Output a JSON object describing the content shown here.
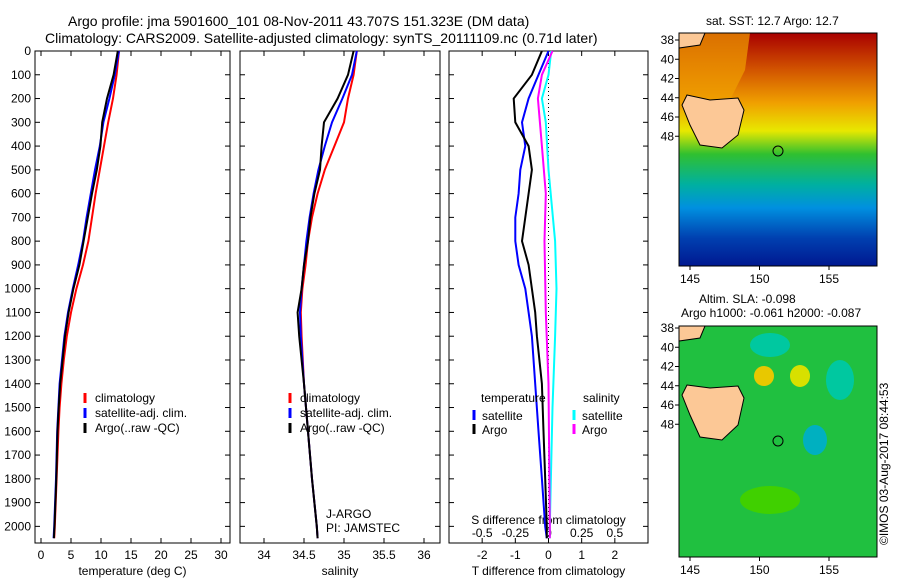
{
  "title": {
    "line1": "Argo profile: jma 5901600_101 08-Nov-2011 43.707S 151.323E (DM data)",
    "line2": "Climatology: CARS2009. Satellite-adjusted climatology: synTS_20111109.nc (0.71d later)"
  },
  "credit": "©IMOS 03-Aug-2017 08:44:53",
  "colors": {
    "climatology": "#ff0000",
    "satellite": "#0000ff",
    "argo": "#000000",
    "s_satellite": "#00ffff",
    "s_argo": "#ff00ff"
  },
  "chart_data": [
    {
      "type": "line",
      "name": "temperature",
      "xlabel": "temperature (deg C)",
      "ylabel": "",
      "xlim": [
        -1,
        31.5
      ],
      "ylim": [
        2070,
        0
      ],
      "xticks": [
        0,
        5,
        10,
        15,
        20,
        25,
        30
      ],
      "yticks": [
        0,
        100,
        200,
        300,
        400,
        500,
        600,
        700,
        800,
        900,
        1000,
        1100,
        1200,
        1300,
        1400,
        1500,
        1600,
        1700,
        1800,
        1900,
        2000
      ],
      "legend": [
        "climatology",
        "satellite-adj. clim.",
        "Argo(..raw -QC)"
      ],
      "series": [
        {
          "name": "climatology",
          "color": "#ff0000",
          "depth": [
            0,
            100,
            200,
            300,
            400,
            500,
            600,
            700,
            800,
            900,
            1000,
            1100,
            1200,
            1300,
            1400,
            1500,
            1600,
            1800,
            2000,
            2050
          ],
          "values": [
            13,
            12.6,
            12,
            11.2,
            10.5,
            9.8,
            9.1,
            8.5,
            7.9,
            7.0,
            5.9,
            5.0,
            4.3,
            3.8,
            3.4,
            3.1,
            2.9,
            2.6,
            2.3,
            2.2
          ]
        },
        {
          "name": "satellite-adj. clim.",
          "color": "#0000ff",
          "depth": [
            0,
            100,
            200,
            300,
            400,
            500,
            600,
            700,
            800,
            900,
            1000,
            1100,
            1200,
            1300,
            1400,
            1500,
            1600,
            1800,
            2000,
            2050
          ],
          "values": [
            13,
            12.3,
            11.4,
            10.4,
            9.8,
            9.0,
            8.3,
            7.6,
            7.0,
            6.2,
            5.3,
            4.5,
            3.9,
            3.5,
            3.1,
            2.9,
            2.7,
            2.5,
            2.2,
            2.1
          ]
        },
        {
          "name": "Argo(..raw -QC)",
          "color": "#000000",
          "depth": [
            0,
            100,
            200,
            300,
            400,
            500,
            600,
            700,
            800,
            900,
            1000,
            1100,
            1200,
            1300,
            1400,
            1500,
            1600,
            1800,
            2000,
            2050
          ],
          "values": [
            12.8,
            12.1,
            11.0,
            10.2,
            9.9,
            9.3,
            8.5,
            7.8,
            7.1,
            6.4,
            5.4,
            4.6,
            4.0,
            3.6,
            3.2,
            2.95,
            2.75,
            2.55,
            2.25,
            2.15
          ]
        }
      ]
    },
    {
      "type": "line",
      "name": "salinity",
      "xlabel": "salinity",
      "xlim": [
        33.7,
        36.2
      ],
      "ylim": [
        2070,
        0
      ],
      "xticks": [
        34,
        34.5,
        35,
        35.5,
        36
      ],
      "legend": [
        "climatology",
        "satellite-adj. clim.",
        "Argo(..raw -QC)"
      ],
      "annotation": [
        "J-ARGO",
        "PI: JAMSTEC"
      ],
      "series": [
        {
          "name": "climatology",
          "color": "#ff0000",
          "depth": [
            0,
            100,
            200,
            300,
            400,
            500,
            600,
            700,
            800,
            900,
            1000,
            1100,
            1200,
            1400,
            1600,
            1800,
            2000,
            2050
          ],
          "values": [
            35.16,
            35.12,
            35.05,
            35.0,
            34.88,
            34.76,
            34.67,
            34.6,
            34.55,
            34.52,
            34.48,
            34.46,
            34.47,
            34.5,
            34.55,
            34.6,
            34.66,
            34.67
          ]
        },
        {
          "name": "satellite-adj. clim.",
          "color": "#0000ff",
          "depth": [
            0,
            100,
            200,
            300,
            400,
            500,
            600,
            700,
            800,
            900,
            1000,
            1100,
            1200,
            1400,
            1600,
            1800,
            2000,
            2050
          ],
          "values": [
            35.16,
            35.1,
            34.98,
            34.85,
            34.76,
            34.68,
            34.62,
            34.57,
            34.53,
            34.5,
            34.47,
            34.45,
            34.46,
            34.5,
            34.55,
            34.6,
            34.66,
            34.67
          ]
        },
        {
          "name": "Argo(..raw -QC)",
          "color": "#000000",
          "depth": [
            0,
            100,
            200,
            300,
            400,
            500,
            600,
            700,
            800,
            900,
            1000,
            1100,
            1200,
            1400,
            1600,
            1800,
            2000,
            2050
          ],
          "values": [
            35.12,
            35.05,
            34.92,
            34.75,
            34.72,
            34.7,
            34.63,
            34.58,
            34.55,
            34.5,
            34.47,
            34.42,
            34.44,
            34.5,
            34.55,
            34.6,
            34.66,
            34.67
          ]
        }
      ]
    },
    {
      "type": "line",
      "name": "difference",
      "xlabel": "T difference from climatology",
      "x2label": "S difference from climatology",
      "xlim": [
        -3,
        3
      ],
      "ylim": [
        2070,
        0
      ],
      "xticks": [
        -2,
        -1,
        0,
        1,
        2
      ],
      "x2ticks": [
        -0.5,
        -0.25,
        0,
        0.25,
        0.5
      ],
      "legend_titles": [
        "temperature",
        "salinity"
      ],
      "legend": [
        "satellite",
        "Argo",
        "satellite",
        "Argo"
      ],
      "series": [
        {
          "name": "T satellite",
          "color": "#0000ff",
          "axis": "T",
          "depth": [
            0,
            100,
            200,
            300,
            400,
            500,
            600,
            700,
            800,
            900,
            1000,
            1100,
            1200,
            1400,
            1600,
            1800,
            2000,
            2050
          ],
          "values": [
            0,
            -0.3,
            -0.6,
            -0.8,
            -0.7,
            -0.85,
            -0.9,
            -1.0,
            -1.0,
            -0.9,
            -0.7,
            -0.6,
            -0.5,
            -0.4,
            -0.3,
            -0.2,
            -0.1,
            -0.05
          ]
        },
        {
          "name": "T Argo",
          "color": "#000000",
          "axis": "T",
          "depth": [
            0,
            100,
            200,
            300,
            400,
            500,
            600,
            700,
            800,
            900,
            1000,
            1100,
            1200,
            1400,
            1600,
            1800,
            2000,
            2050
          ],
          "values": [
            -0.2,
            -0.5,
            -1.05,
            -1.0,
            -0.6,
            -0.5,
            -0.6,
            -0.7,
            -0.8,
            -0.6,
            -0.5,
            -0.4,
            -0.35,
            -0.2,
            -0.15,
            -0.1,
            -0.05,
            -0.05
          ]
        },
        {
          "name": "S satellite",
          "color": "#00ffff",
          "axis": "S",
          "depth": [
            0,
            100,
            200,
            300,
            500,
            800,
            1000,
            1200,
            1500,
            2000,
            2050
          ],
          "values": [
            0.02,
            0.0,
            -0.05,
            -0.02,
            0.0,
            0.05,
            0.06,
            0.05,
            0.03,
            0.01,
            0.01
          ]
        },
        {
          "name": "S Argo",
          "color": "#ff00ff",
          "axis": "S",
          "depth": [
            0,
            100,
            200,
            400,
            600,
            800,
            1100,
            1400,
            2000,
            2050
          ],
          "values": [
            0.03,
            -0.05,
            -0.08,
            -0.05,
            -0.02,
            -0.03,
            -0.02,
            0.0,
            0.01,
            0.01
          ]
        }
      ]
    }
  ],
  "maps": [
    {
      "title": "sat. SST: 12.7 Argo: 12.7",
      "lat_ticks": [
        "-38",
        "-40",
        "-42",
        "-44",
        "-46",
        "-48"
      ],
      "lon_ticks": [
        "145",
        "150",
        "155"
      ]
    },
    {
      "title1": "Altim. SLA: -0.098",
      "title2": "Argo h1000: -0.061 h2000: -0.087",
      "lat_ticks": [
        "-38",
        "-40",
        "-42",
        "-44",
        "-46",
        "-48"
      ],
      "lon_ticks": [
        "145",
        "150",
        "155"
      ]
    }
  ]
}
